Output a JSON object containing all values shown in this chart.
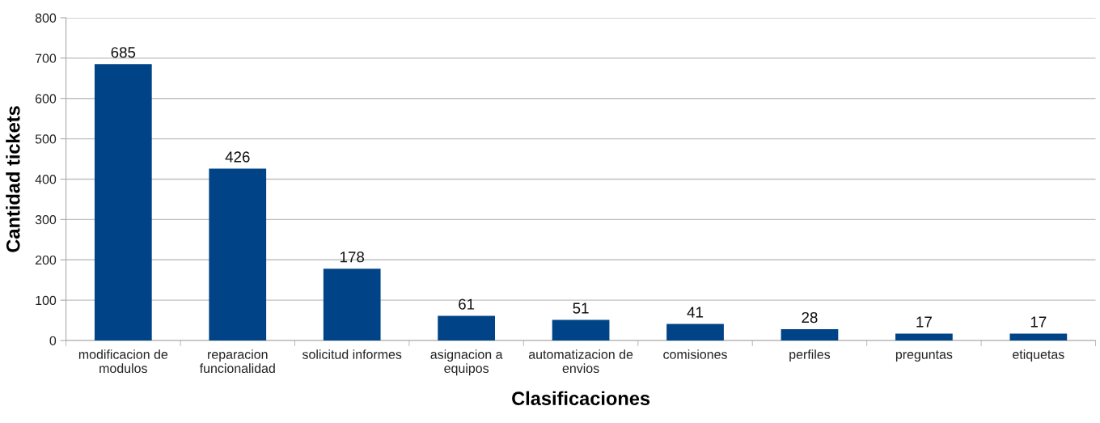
{
  "chart_data": {
    "type": "bar",
    "xlabel": "Clasificaciones",
    "ylabel": "Cantidad tickets",
    "categories": [
      "modificacion de\nmodulos",
      "reparacion\nfuncionalidad",
      "solicitud informes",
      "asignacion a\nequipos",
      "automatizacion de\nenvios",
      "comisiones",
      "perfiles",
      "preguntas",
      "etiquetas"
    ],
    "values": [
      685,
      426,
      178,
      61,
      51,
      41,
      28,
      17,
      17
    ],
    "color": "#004386",
    "ylim": [
      0,
      800
    ],
    "yticks": [
      0,
      100,
      200,
      300,
      400,
      500,
      600,
      700,
      800
    ],
    "grid": "y",
    "data_labels": true,
    "legend": false
  }
}
